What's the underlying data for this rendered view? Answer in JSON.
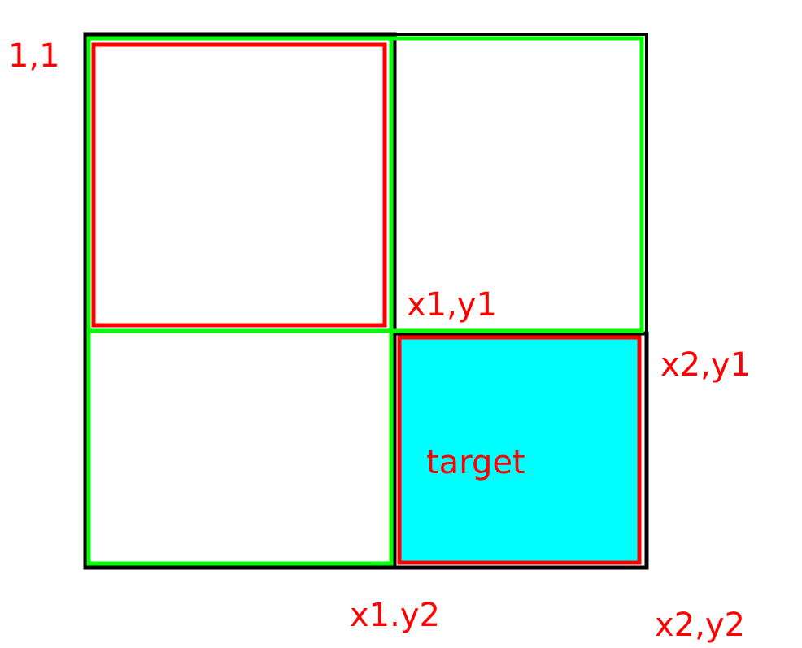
{
  "colors": {
    "background": "#ffffff",
    "outline": "#000000",
    "grid_cell": "#00ff00",
    "highlight": "#ff0000",
    "target_fill": "#00ffff",
    "label": "#ff0000"
  },
  "labels": {
    "origin": "1,1",
    "x1_y1": "x1,y1",
    "x2_y1": "x2,y1",
    "x1_y2": "x1.y2",
    "x2_y2": "x2,y2",
    "target": "target"
  }
}
